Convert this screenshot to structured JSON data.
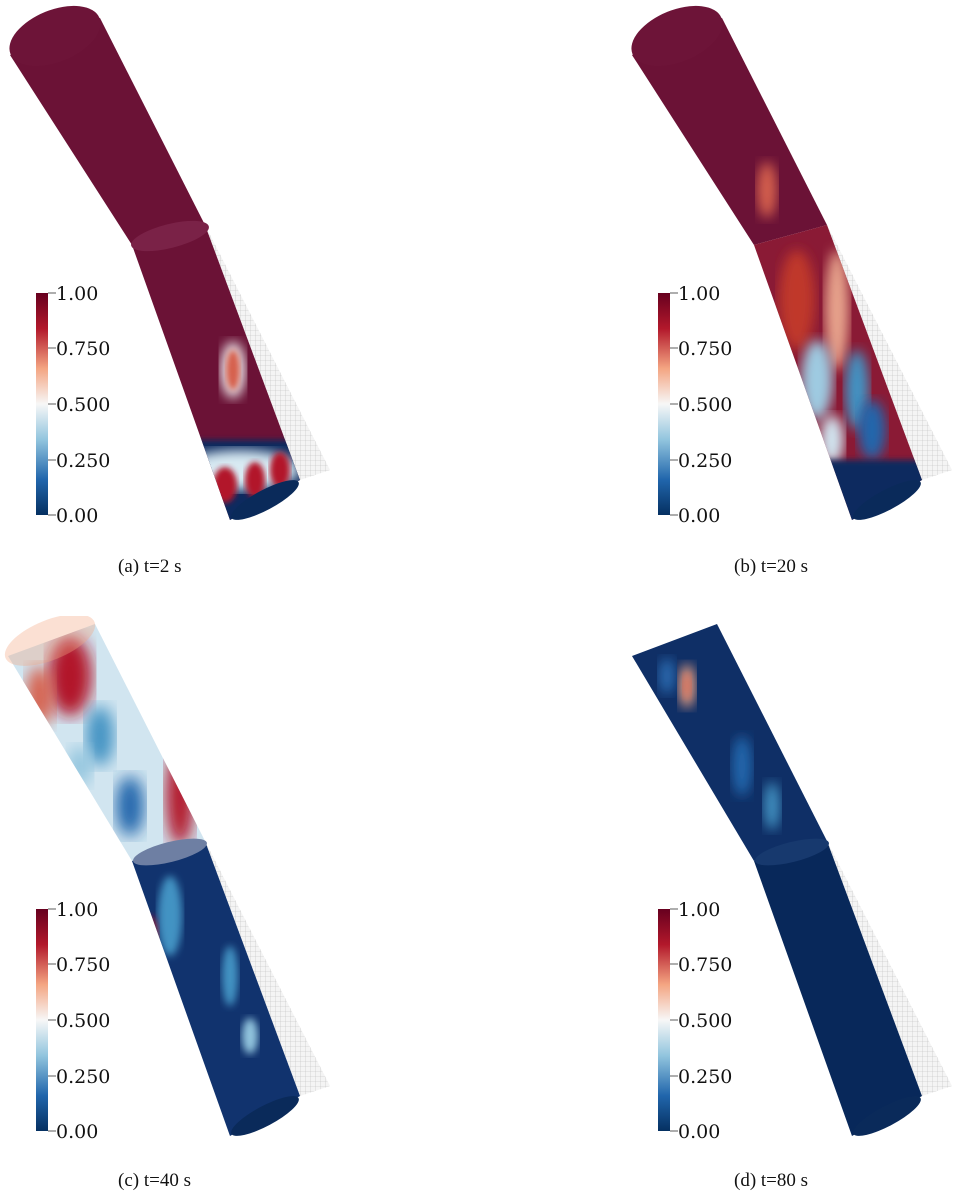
{
  "figure": {
    "colorbar": {
      "ticks": [
        "1.00",
        "0.750",
        "0.500",
        "0.250",
        "0.00"
      ],
      "colors": [
        "#67001f",
        "#b2182b",
        "#f4a582",
        "#f7f7f7",
        "#92c5de",
        "#2166ac",
        "#053061"
      ]
    },
    "panels": [
      {
        "id": "a",
        "caption": "(a) t=2 s",
        "state": "mostly-high"
      },
      {
        "id": "b",
        "caption": "(b) t=20 s",
        "state": "mixing"
      },
      {
        "id": "c",
        "caption": "(c) t=40 s",
        "state": "mixed-top"
      },
      {
        "id": "d",
        "caption": "(d) t=80 s",
        "state": "mostly-low"
      }
    ]
  }
}
